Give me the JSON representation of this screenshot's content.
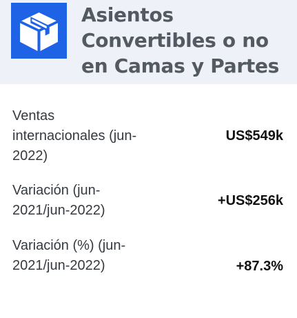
{
  "header": {
    "icon": "box-icon",
    "title": "Asientos Convertibles o no en Camas y Partes"
  },
  "stats": [
    {
      "label": "Ventas internacionales (jun-2022)",
      "value": "US$549k"
    },
    {
      "label": "Variación (jun-2021/jun-2022)",
      "value": "+US$256k"
    },
    {
      "label": "Variación (%) (jun-2021/jun-2022)",
      "value": "+87.3%"
    }
  ],
  "colors": {
    "accent": "#1e63e5",
    "header_bg": "#eef2f8",
    "title": "#545a62"
  }
}
